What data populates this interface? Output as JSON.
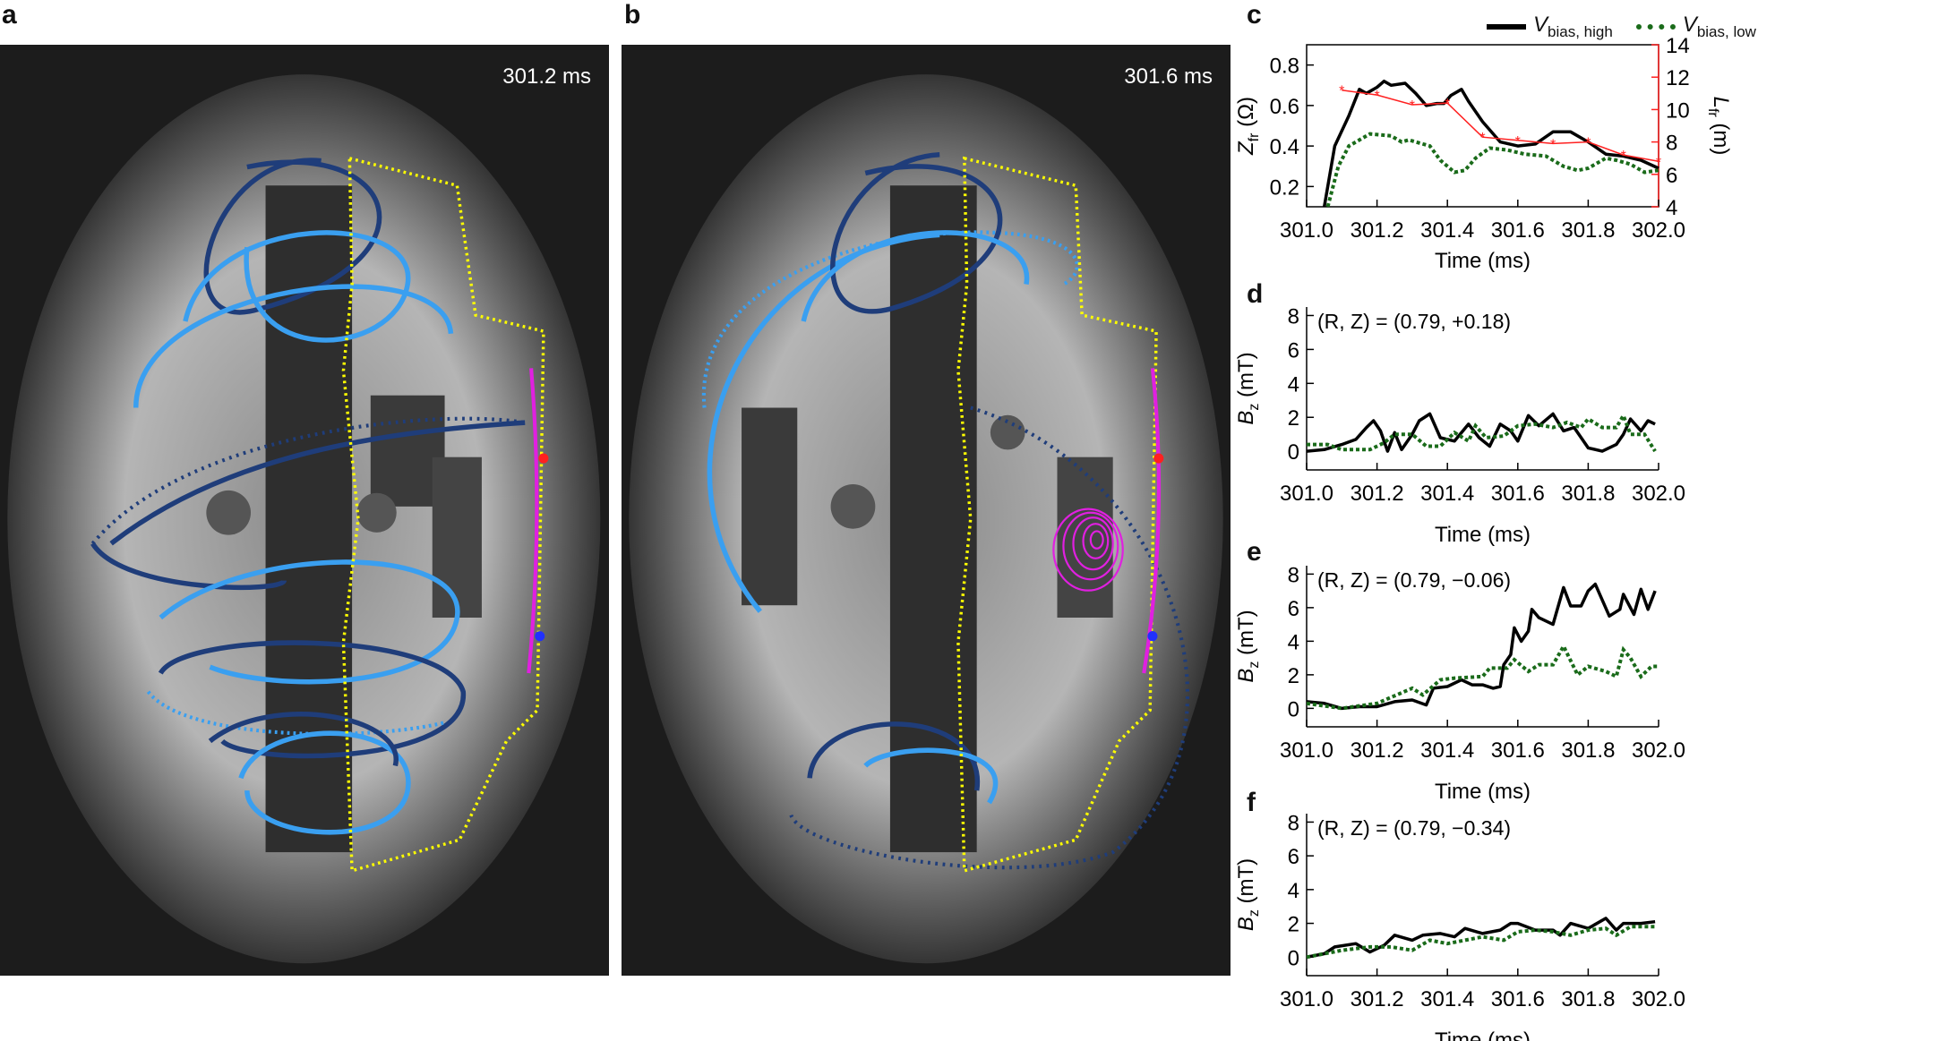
{
  "panels": {
    "a": "a",
    "b": "b",
    "c": "c",
    "d": "d",
    "e": "e",
    "f": "f"
  },
  "photo_a": {
    "timestamp": "301.2 ms"
  },
  "photo_b": {
    "timestamp": "301.6 ms"
  },
  "legend": {
    "high": {
      "symbol": "V",
      "sub": "bias, high",
      "color": "#000000"
    },
    "low": {
      "symbol": "V",
      "sub": "bias, low",
      "color": "#1a6b1a"
    }
  },
  "colors": {
    "high": "#000000",
    "low": "#1a6b1a",
    "lfr": "#ff2020",
    "yellow": "#ffff00",
    "magenta": "#e020e0",
    "light_blue": "#3a9ff0",
    "dark_blue": "#1f3d7a"
  },
  "chart_data": [
    {
      "panel": "c",
      "type": "line",
      "xlabel": "Time (ms)",
      "ylabel": "Z",
      "ylabel_sub": "fr",
      "ylabel_unit": " (Ω)",
      "y2label": "L",
      "y2label_sub": "fr",
      "y2label_unit": " (m)",
      "xlim": [
        301.0,
        302.0
      ],
      "ylim": [
        0.1,
        0.9
      ],
      "y2lim": [
        4,
        14
      ],
      "xticks": [
        "301.0",
        "301.2",
        "301.4",
        "301.6",
        "301.8",
        "302.0"
      ],
      "yticks": [
        "0.2",
        "0.4",
        "0.6",
        "0.8"
      ],
      "y2ticks": [
        "4",
        "6",
        "8",
        "10",
        "12",
        "14"
      ],
      "series": [
        {
          "name": "V bias, high",
          "x": [
            301.05,
            301.08,
            301.12,
            301.15,
            301.17,
            301.2,
            301.22,
            301.24,
            301.28,
            301.31,
            301.34,
            301.37,
            301.39,
            301.41,
            301.44,
            301.46,
            301.5,
            301.55,
            301.6,
            301.65,
            301.7,
            301.75,
            301.8,
            301.85,
            301.9,
            301.95,
            302.0
          ],
          "y": [
            0.1,
            0.4,
            0.55,
            0.68,
            0.66,
            0.69,
            0.72,
            0.7,
            0.71,
            0.66,
            0.6,
            0.61,
            0.61,
            0.65,
            0.68,
            0.62,
            0.52,
            0.42,
            0.4,
            0.41,
            0.47,
            0.47,
            0.42,
            0.36,
            0.35,
            0.33,
            0.29
          ]
        },
        {
          "name": "V bias, low",
          "x": [
            301.06,
            301.09,
            301.12,
            301.18,
            301.24,
            301.27,
            301.29,
            301.35,
            301.38,
            301.42,
            301.45,
            301.48,
            301.52,
            301.57,
            301.62,
            301.68,
            301.7,
            301.73,
            301.77,
            301.8,
            301.85,
            301.88,
            301.92,
            301.96,
            302.0
          ],
          "y": [
            0.1,
            0.3,
            0.4,
            0.46,
            0.45,
            0.42,
            0.43,
            0.4,
            0.33,
            0.27,
            0.28,
            0.34,
            0.39,
            0.38,
            0.36,
            0.35,
            0.33,
            0.3,
            0.28,
            0.29,
            0.34,
            0.33,
            0.31,
            0.27,
            0.28
          ]
        },
        {
          "axis": "right",
          "x": [
            301.1,
            301.2,
            301.3,
            301.4,
            301.5,
            301.6,
            301.7,
            301.8,
            301.9,
            302.0
          ],
          "y": [
            11.2,
            10.9,
            10.3,
            10.4,
            8.3,
            8.1,
            7.9,
            8.0,
            7.2,
            6.8
          ]
        }
      ]
    },
    {
      "panel": "d",
      "type": "line",
      "annotation": "(R, Z) = (0.79, +0.18)",
      "xlabel": "Time (ms)",
      "ylabel": "B",
      "ylabel_sub": "z",
      "ylabel_unit": " (mT)",
      "xlim": [
        301.0,
        302.0
      ],
      "ylim": [
        -1.1,
        8.5
      ],
      "xticks": [
        "301.0",
        "301.2",
        "301.4",
        "301.6",
        "301.8",
        "302.0"
      ],
      "yticks": [
        "0",
        "2",
        "4",
        "6",
        "8"
      ],
      "series": [
        {
          "name": "V bias, high",
          "x": [
            301.0,
            301.05,
            301.1,
            301.14,
            301.17,
            301.19,
            301.21,
            301.23,
            301.25,
            301.27,
            301.3,
            301.32,
            301.35,
            301.38,
            301.42,
            301.46,
            301.49,
            301.52,
            301.55,
            301.58,
            301.6,
            301.63,
            301.66,
            301.7,
            301.73,
            301.76,
            301.8,
            301.84,
            301.88,
            301.9,
            301.92,
            301.95,
            301.97,
            301.99
          ],
          "y": [
            0,
            0.1,
            0.4,
            0.7,
            1.4,
            1.8,
            1.2,
            0,
            1.1,
            0.1,
            1.0,
            1.8,
            2.2,
            0.8,
            0.6,
            1.6,
            0.8,
            0.3,
            1.6,
            1.2,
            0.6,
            2.1,
            1.5,
            2.2,
            1.2,
            1.4,
            0.2,
            0,
            0.4,
            1.0,
            1.9,
            1.2,
            1.8,
            1.6
          ]
        },
        {
          "name": "V bias, low",
          "x": [
            301.0,
            301.06,
            301.1,
            301.18,
            301.22,
            301.25,
            301.3,
            301.34,
            301.38,
            301.42,
            301.46,
            301.48,
            301.51,
            301.56,
            301.6,
            301.65,
            301.7,
            301.74,
            301.78,
            301.8,
            301.84,
            301.88,
            301.9,
            301.92,
            301.96,
            301.99
          ],
          "y": [
            0.4,
            0.4,
            0.1,
            0.1,
            0.5,
            1.0,
            1.0,
            0.3,
            0.3,
            1.1,
            0.6,
            1.5,
            0.8,
            0.9,
            1.5,
            1.6,
            1.4,
            1.7,
            1.4,
            1.9,
            1.4,
            1.4,
            2.1,
            1.0,
            1.0,
            0
          ]
        }
      ]
    },
    {
      "panel": "e",
      "type": "line",
      "annotation": "(R, Z) = (0.79, −0.06)",
      "xlabel": "Time (ms)",
      "ylabel": "B",
      "ylabel_sub": "z",
      "ylabel_unit": " (mT)",
      "xlim": [
        301.0,
        302.0
      ],
      "ylim": [
        -1.1,
        8.5
      ],
      "xticks": [
        "301.0",
        "301.2",
        "301.4",
        "301.6",
        "301.8",
        "302.0"
      ],
      "yticks": [
        "0",
        "2",
        "4",
        "6",
        "8"
      ],
      "series": [
        {
          "name": "V bias, high",
          "x": [
            301.0,
            301.05,
            301.1,
            301.15,
            301.2,
            301.25,
            301.3,
            301.34,
            301.36,
            301.4,
            301.44,
            301.47,
            301.5,
            301.53,
            301.55,
            301.56,
            301.58,
            301.59,
            301.61,
            301.63,
            301.64,
            301.66,
            301.7,
            301.73,
            301.75,
            301.78,
            301.8,
            301.82,
            301.86,
            301.89,
            301.9,
            301.93,
            301.95,
            301.97,
            301.99
          ],
          "y": [
            0.4,
            0.3,
            0.0,
            0.1,
            0.1,
            0.4,
            0.5,
            0.2,
            1.2,
            1.3,
            1.7,
            1.4,
            1.4,
            1.2,
            1.3,
            2.6,
            3.2,
            4.8,
            4.0,
            4.6,
            5.9,
            5.4,
            5.0,
            7.2,
            6.1,
            6.1,
            7.0,
            7.4,
            5.5,
            5.9,
            6.8,
            5.6,
            7.1,
            5.9,
            7.0
          ]
        },
        {
          "name": "V bias, low",
          "x": [
            301.0,
            301.1,
            301.2,
            301.3,
            301.33,
            301.38,
            301.42,
            301.5,
            301.52,
            301.57,
            301.59,
            301.63,
            301.66,
            301.7,
            301.73,
            301.77,
            301.8,
            301.85,
            301.88,
            301.9,
            301.92,
            301.95,
            301.98,
            302.0
          ],
          "y": [
            0.3,
            0,
            0.3,
            1.2,
            0.8,
            1.7,
            1.8,
            1.9,
            2.4,
            2.4,
            2.9,
            2.2,
            2.6,
            2.6,
            3.7,
            2.0,
            2.5,
            2.2,
            1.9,
            3.5,
            3.0,
            1.9,
            2.5,
            2.5
          ]
        }
      ]
    },
    {
      "panel": "f",
      "type": "line",
      "annotation": "(R, Z) = (0.79, −0.34)",
      "xlabel": "Time (ms)",
      "ylabel": "B",
      "ylabel_sub": "z",
      "ylabel_unit": " (mT)",
      "xlim": [
        301.0,
        302.0
      ],
      "ylim": [
        -1.1,
        8.5
      ],
      "xticks": [
        "301.0",
        "301.2",
        "301.4",
        "301.6",
        "301.8",
        "302.0"
      ],
      "yticks": [
        "0",
        "2",
        "4",
        "6",
        "8"
      ],
      "series": [
        {
          "name": "V bias, high",
          "x": [
            301.0,
            301.05,
            301.08,
            301.14,
            301.18,
            301.22,
            301.25,
            301.3,
            301.33,
            301.38,
            301.42,
            301.45,
            301.5,
            301.55,
            301.58,
            301.6,
            301.65,
            301.7,
            301.72,
            301.75,
            301.8,
            301.85,
            301.88,
            301.9,
            301.95,
            301.99
          ],
          "y": [
            0,
            0.2,
            0.6,
            0.8,
            0.3,
            0.7,
            1.3,
            1.0,
            1.3,
            1.4,
            1.2,
            1.7,
            1.4,
            1.6,
            2.0,
            2.0,
            1.6,
            1.6,
            1.3,
            2.0,
            1.7,
            2.3,
            1.6,
            2.0,
            2.0,
            2.1
          ]
        },
        {
          "name": "V bias, low",
          "x": [
            301.0,
            301.1,
            301.18,
            301.24,
            301.3,
            301.35,
            301.4,
            301.45,
            301.5,
            301.56,
            301.6,
            301.65,
            301.7,
            301.75,
            301.8,
            301.85,
            301.88,
            301.92,
            301.99
          ],
          "y": [
            0,
            0.4,
            0.6,
            0.6,
            0.4,
            1.0,
            0.8,
            1.0,
            1.2,
            1.0,
            1.5,
            1.6,
            1.5,
            1.3,
            1.6,
            1.7,
            1.3,
            1.8,
            1.8
          ]
        }
      ]
    }
  ]
}
